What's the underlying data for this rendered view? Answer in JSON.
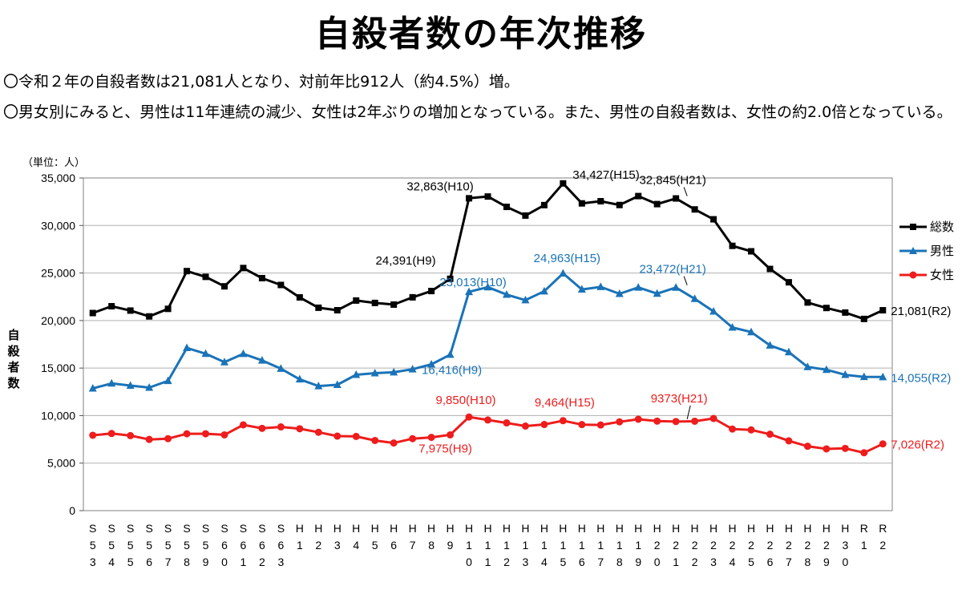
{
  "title": "自殺者数の年次推移",
  "notes": [
    "〇令和２年の自殺者数は21,081人となり、対前年比912人（約4.5%）増。",
    "〇男女別にみると、男性は11年連続の減少、女性は2年ぶりの増加となっている。また、男性の自殺者数は、女性の約2.0倍となっている。"
  ],
  "colors": {
    "total": "#000000",
    "male": "#1a73b8",
    "female": "#ee1c1c",
    "grid": "#b0b0b0"
  },
  "chart_data": {
    "type": "line",
    "unit_label": "（単位：人）",
    "ylabel": "自殺者数",
    "ylim": [
      0,
      35000
    ],
    "yticks": [
      0,
      5000,
      10000,
      15000,
      20000,
      25000,
      30000,
      35000
    ],
    "ytick_labels": [
      "0",
      "5,000",
      "10,000",
      "15,000",
      "20,000",
      "25,000",
      "30,000",
      "35,000"
    ],
    "grid": true,
    "legend_position": "right",
    "categories": [
      "S53",
      "S54",
      "S55",
      "S56",
      "S57",
      "S58",
      "S59",
      "S60",
      "S61",
      "S62",
      "S63",
      "H1",
      "H2",
      "H3",
      "H4",
      "H5",
      "H6",
      "H7",
      "H8",
      "H9",
      "H10",
      "H11",
      "H12",
      "H13",
      "H14",
      "H15",
      "H16",
      "H17",
      "H18",
      "H19",
      "H20",
      "H21",
      "H22",
      "H23",
      "H24",
      "H25",
      "H26",
      "H27",
      "H28",
      "H29",
      "H30",
      "R1",
      "R2"
    ],
    "series": [
      {
        "name": "総数",
        "color_key": "total",
        "marker": "square",
        "values": [
          20788,
          21503,
          21048,
          20434,
          21228,
          25202,
          24596,
          23599,
          25524,
          24460,
          23742,
          22436,
          21346,
          21084,
          22104,
          21851,
          21679,
          22445,
          23104,
          24391,
          32863,
          33048,
          31957,
          31042,
          32143,
          34427,
          32325,
          32552,
          32155,
          33093,
          32249,
          32845,
          31690,
          30651,
          27858,
          27283,
          25427,
          24025,
          21897,
          21321,
          20840,
          20169,
          21081
        ]
      },
      {
        "name": "男性",
        "color_key": "male",
        "marker": "triangle",
        "values": [
          12859,
          13386,
          13155,
          12942,
          13654,
          17116,
          16508,
          15624,
          16497,
          15802,
          14934,
          13818,
          13102,
          13242,
          14296,
          14468,
          14560,
          14874,
          15393,
          16416,
          23013,
          23512,
          22727,
          22144,
          23080,
          24963,
          23272,
          23540,
          22813,
          23478,
          22831,
          23472,
          22283,
          20955,
          19273,
          18787,
          17386,
          16681,
          15121,
          14826,
          14290,
          14078,
          14055
        ]
      },
      {
        "name": "女性",
        "color_key": "female",
        "marker": "circle",
        "values": [
          7929,
          8117,
          7893,
          7492,
          7574,
          8086,
          8088,
          7975,
          9027,
          8658,
          8808,
          8618,
          8244,
          7842,
          7808,
          7383,
          7119,
          7571,
          7711,
          7975,
          9850,
          9536,
          9230,
          8898,
          9063,
          9464,
          9053,
          9012,
          9342,
          9615,
          9418,
          9373,
          9407,
          9696,
          8585,
          8496,
          8041,
          7344,
          6776,
          6495,
          6550,
          6091,
          7026
        ]
      }
    ],
    "annotations": [
      {
        "text": "32,863(H10)",
        "series": 0,
        "index": 20,
        "dx": -36,
        "dy": -10,
        "anchor": "middle"
      },
      {
        "text": "34,427(H15)",
        "series": 0,
        "index": 25,
        "dx": 12,
        "dy": -6,
        "anchor": "start"
      },
      {
        "text": "32,845(H21)",
        "series": 0,
        "index": 31,
        "dx": -4,
        "dy": -18,
        "anchor": "middle",
        "pointer": true
      },
      {
        "text": "24,391(H9)",
        "series": 0,
        "index": 19,
        "dx": -18,
        "dy": -18,
        "anchor": "end"
      },
      {
        "text": "21,081(R2)",
        "series": 0,
        "index": 42,
        "dx": 10,
        "dy": 6,
        "anchor": "start"
      },
      {
        "text": "23,013(H10)",
        "series": 1,
        "index": 20,
        "dx": 5,
        "dy": -7,
        "anchor": "middle"
      },
      {
        "text": "24,963(H15)",
        "series": 1,
        "index": 25,
        "dx": 5,
        "dy": -14,
        "anchor": "middle"
      },
      {
        "text": "23,472(H21)",
        "series": 1,
        "index": 31,
        "dx": -4,
        "dy": -18,
        "anchor": "middle",
        "pointer": true
      },
      {
        "text": "16,416(H9)",
        "series": 1,
        "index": 19,
        "dx": 2,
        "dy": 24,
        "anchor": "middle"
      },
      {
        "text": "14,055(R2)",
        "series": 1,
        "index": 42,
        "dx": 10,
        "dy": 6,
        "anchor": "start"
      },
      {
        "text": "9,850(H10)",
        "series": 2,
        "index": 20,
        "dx": -4,
        "dy": -16,
        "anchor": "middle"
      },
      {
        "text": "9,464(H15)",
        "series": 2,
        "index": 25,
        "dx": 2,
        "dy": -18,
        "anchor": "middle"
      },
      {
        "text": "9373(H21)",
        "series": 2,
        "index": 31,
        "dx": 4,
        "dy": -24,
        "anchor": "middle",
        "pointer": true
      },
      {
        "text": "7,975(H9)",
        "series": 2,
        "index": 19,
        "dx": -6,
        "dy": 22,
        "anchor": "middle"
      },
      {
        "text": "7,026(R2)",
        "series": 2,
        "index": 42,
        "dx": 10,
        "dy": 6,
        "anchor": "start"
      }
    ]
  }
}
